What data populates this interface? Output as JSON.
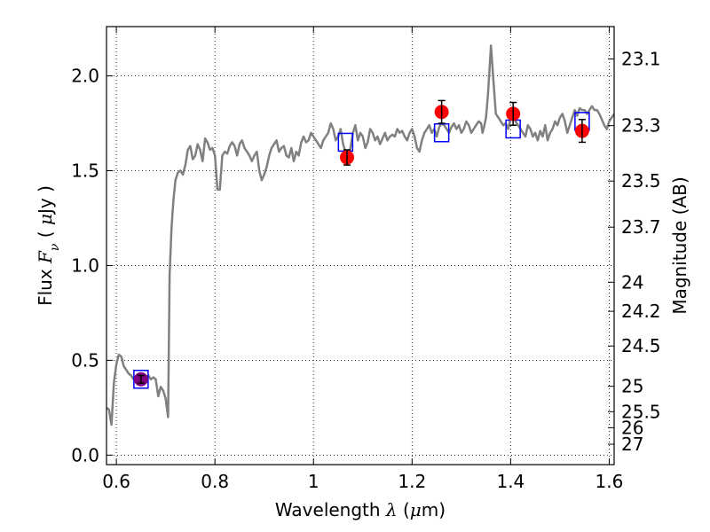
{
  "chart_data": {
    "type": "line",
    "xlabel": {
      "prefix": "Wavelength  ",
      "symbol": "λ",
      "open": " (",
      "unit_sym": "μ",
      "unit": "m)"
    },
    "ylabel": {
      "prefix": "Flux  ",
      "symbol": "F",
      "sub": "ν",
      "open": "  ( ",
      "unit_sym": "μ",
      "unit": "Jy )"
    },
    "y2label": "Magnitude (AB)",
    "xlim": [
      0.58,
      1.61
    ],
    "ylim": [
      -0.05,
      2.26
    ],
    "grid": true,
    "xticks": [
      {
        "value": 0.6,
        "label": "0.6"
      },
      {
        "value": 0.8,
        "label": "0.8"
      },
      {
        "value": 1.0,
        "label": "1"
      },
      {
        "value": 1.2,
        "label": "1.2"
      },
      {
        "value": 1.4,
        "label": "1.4"
      },
      {
        "value": 1.6,
        "label": "1.6"
      }
    ],
    "yticks": [
      {
        "value": 0.0,
        "label": "0.0"
      },
      {
        "value": 0.5,
        "label": "0.5"
      },
      {
        "value": 1.0,
        "label": "1.0"
      },
      {
        "value": 1.5,
        "label": "1.5"
      },
      {
        "value": 2.0,
        "label": "2.0"
      }
    ],
    "mag_ticks": [
      {
        "mag": 23.1,
        "label": "23.1"
      },
      {
        "mag": 23.3,
        "label": "23.3"
      },
      {
        "mag": 23.5,
        "label": "23.5"
      },
      {
        "mag": 23.7,
        "label": "23.7"
      },
      {
        "mag": 24.0,
        "label": "24"
      },
      {
        "mag": 24.2,
        "label": "24.2"
      },
      {
        "mag": 24.5,
        "label": "24.5"
      },
      {
        "mag": 25.0,
        "label": "25"
      },
      {
        "mag": 25.5,
        "label": "25.5"
      },
      {
        "mag": 26.0,
        "label": "26"
      },
      {
        "mag": 27.0,
        "label": "27"
      }
    ],
    "model_spectrum": {
      "color": "#808080",
      "x": [
        0.58,
        0.585,
        0.59,
        0.595,
        0.6,
        0.605,
        0.61,
        0.615,
        0.62,
        0.625,
        0.63,
        0.635,
        0.64,
        0.645,
        0.65,
        0.655,
        0.66,
        0.665,
        0.67,
        0.675,
        0.68,
        0.685,
        0.69,
        0.695,
        0.7,
        0.705,
        0.708,
        0.712,
        0.716,
        0.72,
        0.725,
        0.73,
        0.735,
        0.74,
        0.745,
        0.75,
        0.755,
        0.76,
        0.765,
        0.77,
        0.775,
        0.78,
        0.785,
        0.79,
        0.795,
        0.8,
        0.805,
        0.81,
        0.815,
        0.82,
        0.825,
        0.83,
        0.835,
        0.84,
        0.845,
        0.85,
        0.855,
        0.86,
        0.865,
        0.87,
        0.875,
        0.88,
        0.885,
        0.89,
        0.895,
        0.9,
        0.905,
        0.91,
        0.915,
        0.92,
        0.925,
        0.93,
        0.935,
        0.94,
        0.945,
        0.95,
        0.955,
        0.96,
        0.965,
        0.97,
        0.975,
        0.98,
        0.985,
        0.99,
        0.995,
        1.0,
        1.005,
        1.01,
        1.015,
        1.02,
        1.025,
        1.03,
        1.035,
        1.04,
        1.045,
        1.05,
        1.055,
        1.06,
        1.065,
        1.07,
        1.075,
        1.08,
        1.085,
        1.09,
        1.095,
        1.1,
        1.105,
        1.11,
        1.115,
        1.12,
        1.125,
        1.13,
        1.135,
        1.14,
        1.145,
        1.15,
        1.155,
        1.16,
        1.165,
        1.17,
        1.175,
        1.18,
        1.185,
        1.19,
        1.195,
        1.2,
        1.205,
        1.21,
        1.215,
        1.22,
        1.225,
        1.23,
        1.235,
        1.24,
        1.245,
        1.25,
        1.255,
        1.26,
        1.265,
        1.27,
        1.275,
        1.28,
        1.285,
        1.29,
        1.295,
        1.3,
        1.305,
        1.31,
        1.315,
        1.32,
        1.325,
        1.33,
        1.335,
        1.34,
        1.343,
        1.346,
        1.35,
        1.354,
        1.36,
        1.365,
        1.37,
        1.375,
        1.38,
        1.385,
        1.39,
        1.395,
        1.4,
        1.405,
        1.41,
        1.415,
        1.42,
        1.425,
        1.43,
        1.435,
        1.44,
        1.445,
        1.45,
        1.455,
        1.46,
        1.465,
        1.47,
        1.475,
        1.48,
        1.485,
        1.49,
        1.495,
        1.5,
        1.505,
        1.51,
        1.515,
        1.52,
        1.525,
        1.53,
        1.535,
        1.54,
        1.545,
        1.55,
        1.555,
        1.56,
        1.565,
        1.57,
        1.575,
        1.58,
        1.585,
        1.59,
        1.595,
        1.6,
        1.605,
        1.61
      ],
      "y": [
        0.25,
        0.24,
        0.16,
        0.38,
        0.48,
        0.53,
        0.52,
        0.47,
        0.45,
        0.43,
        0.42,
        0.4,
        0.41,
        0.4,
        0.41,
        0.42,
        0.41,
        0.42,
        0.4,
        0.41,
        0.4,
        0.31,
        0.36,
        0.34,
        0.3,
        0.2,
        0.95,
        1.2,
        1.35,
        1.45,
        1.49,
        1.5,
        1.48,
        1.53,
        1.61,
        1.63,
        1.56,
        1.58,
        1.64,
        1.61,
        1.55,
        1.67,
        1.65,
        1.61,
        1.62,
        1.58,
        1.4,
        1.4,
        1.58,
        1.6,
        1.59,
        1.63,
        1.65,
        1.63,
        1.58,
        1.64,
        1.66,
        1.62,
        1.6,
        1.58,
        1.55,
        1.58,
        1.6,
        1.5,
        1.45,
        1.48,
        1.52,
        1.58,
        1.62,
        1.64,
        1.66,
        1.6,
        1.62,
        1.63,
        1.58,
        1.57,
        1.62,
        1.55,
        1.6,
        1.58,
        1.65,
        1.68,
        1.65,
        1.66,
        1.7,
        1.68,
        1.66,
        1.64,
        1.62,
        1.66,
        1.68,
        1.7,
        1.75,
        1.72,
        1.66,
        1.68,
        1.72,
        1.64,
        1.6,
        1.58,
        1.62,
        1.7,
        1.74,
        1.66,
        1.7,
        1.68,
        1.62,
        1.65,
        1.72,
        1.7,
        1.66,
        1.68,
        1.64,
        1.67,
        1.7,
        1.66,
        1.68,
        1.69,
        1.68,
        1.72,
        1.7,
        1.71,
        1.68,
        1.66,
        1.7,
        1.72,
        1.68,
        1.62,
        1.6,
        1.66,
        1.7,
        1.72,
        1.74,
        1.7,
        1.72,
        1.68,
        1.73,
        1.75,
        1.74,
        1.72,
        1.7,
        1.73,
        1.75,
        1.72,
        1.74,
        1.7,
        1.72,
        1.76,
        1.74,
        1.7,
        1.72,
        1.74,
        1.76,
        1.75,
        1.7,
        1.73,
        1.78,
        1.9,
        2.16,
        1.98,
        1.8,
        1.78,
        1.76,
        1.74,
        1.75,
        1.72,
        1.78,
        1.8,
        1.76,
        1.74,
        1.72,
        1.7,
        1.68,
        1.74,
        1.72,
        1.68,
        1.7,
        1.66,
        1.71,
        1.68,
        1.74,
        1.66,
        1.7,
        1.72,
        1.76,
        1.74,
        1.78,
        1.8,
        1.76,
        1.7,
        1.74,
        1.78,
        1.82,
        1.79,
        1.83,
        1.82,
        1.82,
        1.8,
        1.82,
        1.84,
        1.82,
        1.82,
        1.8,
        1.77,
        1.74,
        1.72,
        1.76,
        1.78,
        1.8
      ],
      "clip_ymin": -0.05
    },
    "observed_points": {
      "color": "#ff0000",
      "points": [
        {
          "x": 1.068,
          "y": 1.57,
          "err": 0.04
        },
        {
          "x": 1.26,
          "y": 1.81,
          "err": 0.06
        },
        {
          "x": 1.405,
          "y": 1.8,
          "err": 0.06
        },
        {
          "x": 1.545,
          "y": 1.71,
          "err": 0.06
        }
      ]
    },
    "low_point": {
      "x": 0.65,
      "y": 0.4,
      "err": 0.02,
      "color": "#800080"
    },
    "model_boxes": {
      "color": "#0000ff",
      "points": [
        {
          "x": 0.65,
          "y": 0.4
        },
        {
          "x": 1.065,
          "y": 1.65
        },
        {
          "x": 1.26,
          "y": 1.7
        },
        {
          "x": 1.405,
          "y": 1.72
        },
        {
          "x": 1.545,
          "y": 1.76
        }
      ]
    }
  }
}
